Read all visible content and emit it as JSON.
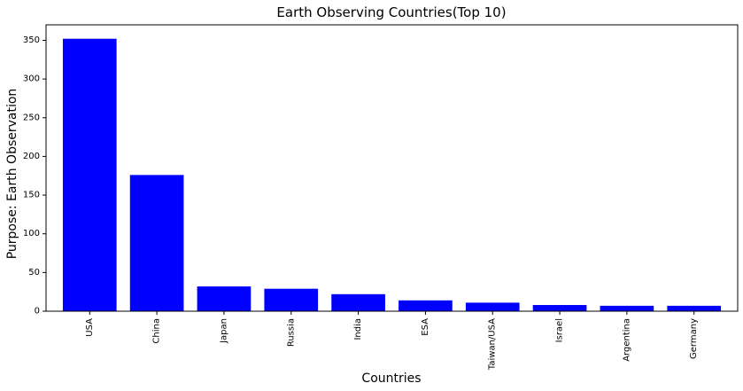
{
  "chart_data": {
    "type": "bar",
    "title": "Earth Observing Countries(Top 10)",
    "xlabel": "Countries",
    "ylabel": "Purpose: Earth Observation",
    "categories": [
      "USA",
      "China",
      "Japan",
      "Russia",
      "India",
      "ESA",
      "Taiwan/USA",
      "Israel",
      "Argentina",
      "Germany"
    ],
    "values": [
      352,
      176,
      32,
      29,
      22,
      14,
      11,
      8,
      7,
      7
    ],
    "ylim": [
      0,
      370
    ],
    "yticks": [
      0,
      50,
      100,
      150,
      200,
      250,
      300,
      350
    ],
    "bar_color": "#0000ff",
    "grid": false
  }
}
